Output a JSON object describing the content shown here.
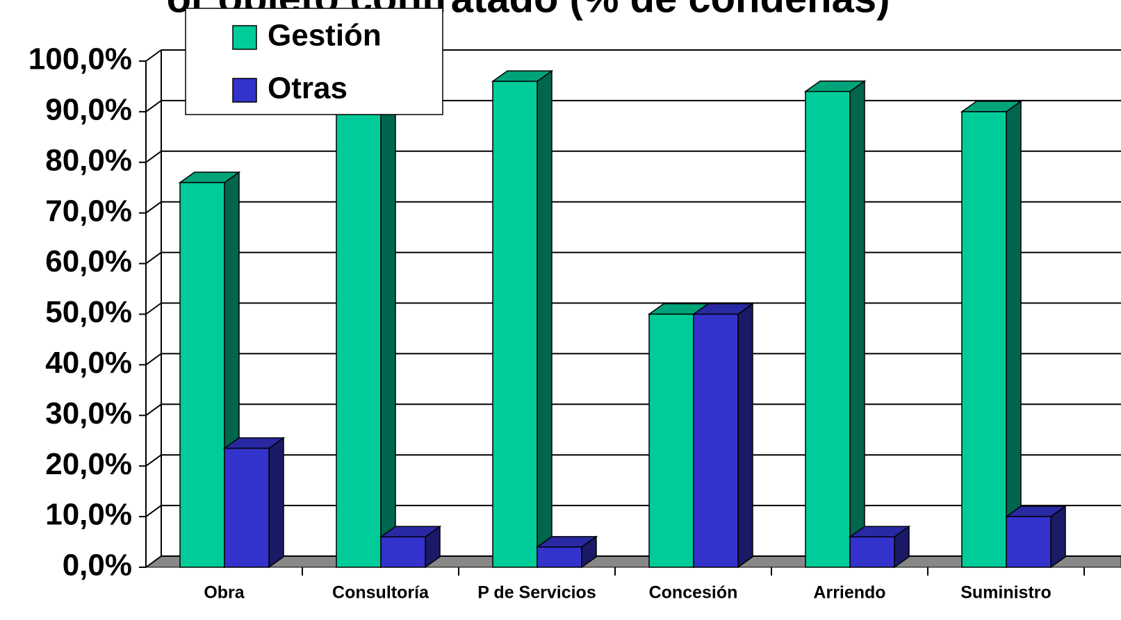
{
  "chart_data": {
    "type": "bar3d",
    "title": "or objeto contratado (% de condenas)",
    "categories": [
      "Obra",
      "Consultoría",
      "P de Servicios",
      "Concesión",
      "Arriendo",
      "Suministro"
    ],
    "series": [
      {
        "name": "Gestión",
        "color": "#00cc99",
        "values": [
          76,
          94,
          96,
          50,
          94,
          90
        ]
      },
      {
        "name": "Otras",
        "color": "#3333cc",
        "values": [
          23.5,
          6,
          4,
          50,
          6,
          10
        ]
      }
    ],
    "ylim": [
      0,
      100
    ],
    "yticks": [
      {
        "value": 0,
        "label": "0,0%"
      },
      {
        "value": 10,
        "label": "10,0%"
      },
      {
        "value": 20,
        "label": "20,0%"
      },
      {
        "value": 30,
        "label": "30,0%"
      },
      {
        "value": 40,
        "label": "40,0%"
      },
      {
        "value": 50,
        "label": "50,0%"
      },
      {
        "value": 60,
        "label": "60,0%"
      },
      {
        "value": 70,
        "label": "70,0%"
      },
      {
        "value": 80,
        "label": "80,0%"
      },
      {
        "value": 90,
        "label": "90,0%"
      },
      {
        "value": 100,
        "label": "100,0%"
      }
    ],
    "grid": true,
    "legend": "top-left"
  }
}
